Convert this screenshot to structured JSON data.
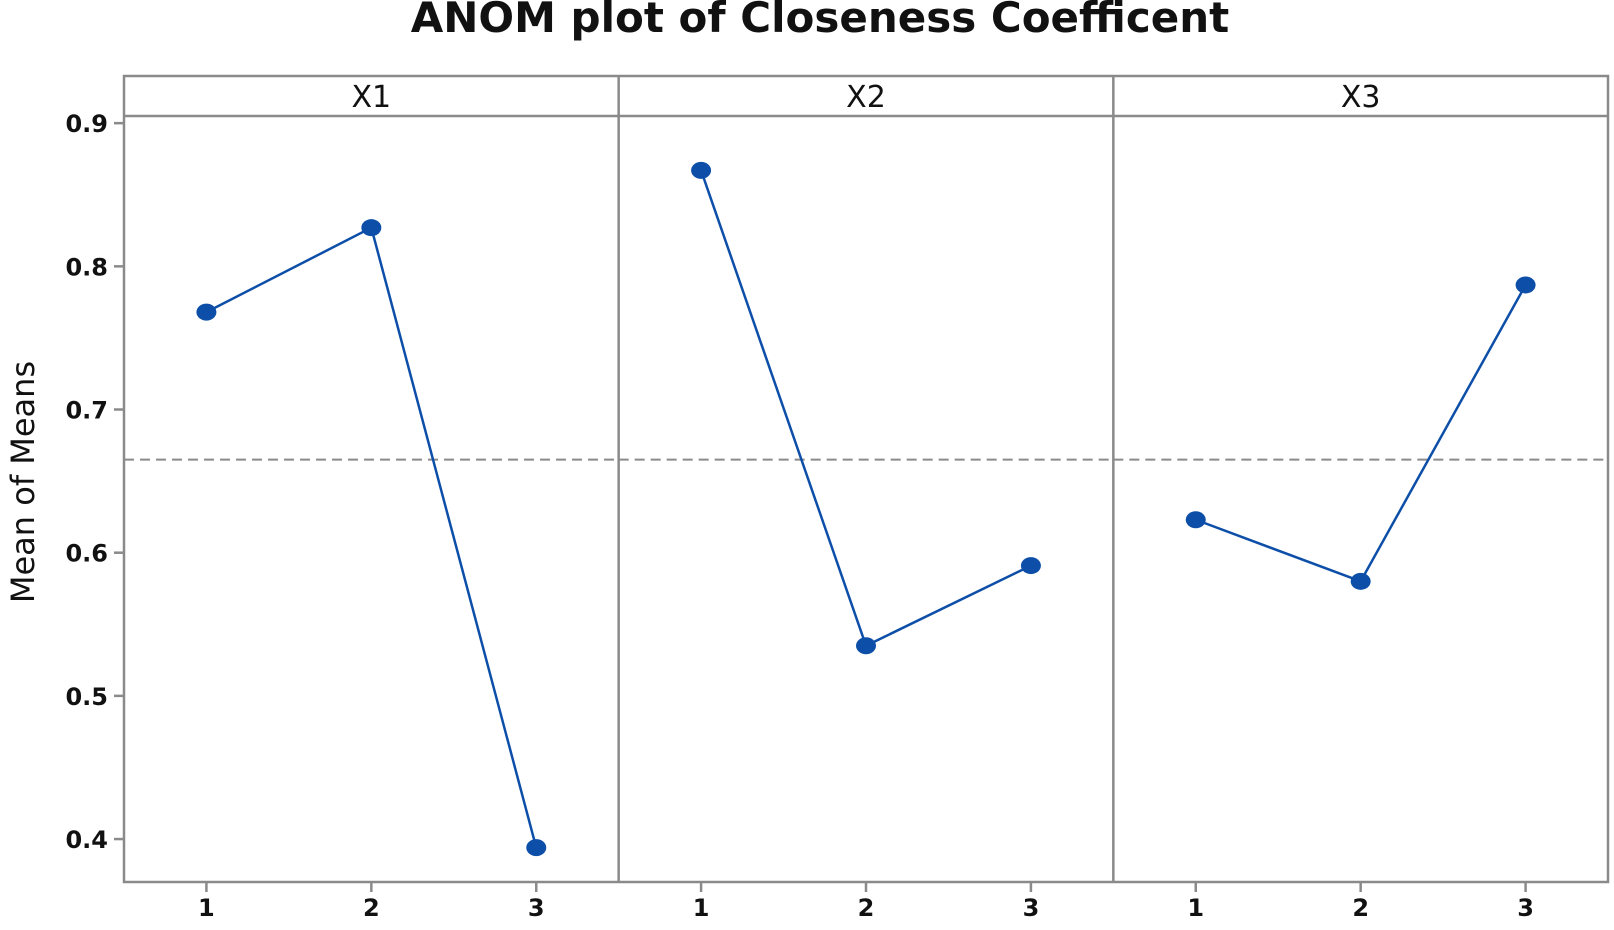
{
  "chart_data": {
    "type": "line",
    "title": "ANOM plot of Closeness Coefficent",
    "ylabel": "Mean of Means",
    "xlabel": "",
    "ylim": [
      0.37,
      0.905
    ],
    "y_ticks": [
      "0.4",
      "0.5",
      "0.6",
      "0.7",
      "0.8",
      "0.9"
    ],
    "y_tick_values": [
      0.4,
      0.5,
      0.6,
      0.7,
      0.8,
      0.9
    ],
    "reference_line": 0.665,
    "colors": {
      "series": "#0d4fa8",
      "reference": "#8a8a8a",
      "frame": "#8a8a8a"
    },
    "panels": [
      {
        "label": "X1",
        "categories": [
          "1",
          "2",
          "3"
        ],
        "values": [
          0.768,
          0.827,
          0.394
        ]
      },
      {
        "label": "X2",
        "categories": [
          "1",
          "2",
          "3"
        ],
        "values": [
          0.867,
          0.535,
          0.591
        ]
      },
      {
        "label": "X3",
        "categories": [
          "1",
          "2",
          "3"
        ],
        "values": [
          0.623,
          0.58,
          0.787
        ]
      }
    ]
  }
}
